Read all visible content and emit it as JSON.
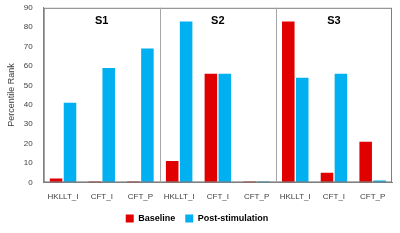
{
  "chart_data": {
    "type": "bar",
    "y_label": "Percentile Rank",
    "panels": [
      "S1",
      "S2",
      "S3"
    ],
    "categories": [
      "HKLLT_I",
      "CFT_I",
      "CFT_P",
      "HKLLT_I",
      "CFT_I",
      "CFT_P",
      "HKLLT_I",
      "CFT_I",
      "CFT_P"
    ],
    "series": [
      {
        "name": "Baseline",
        "color": "#e00000",
        "values": [
          2,
          0.5,
          0.5,
          11,
          56,
          0.5,
          83,
          5,
          21
        ]
      },
      {
        "name": "Post-stimulation",
        "color": "#00b0f0",
        "values": [
          41,
          59,
          69,
          83,
          56,
          0.5,
          54,
          56,
          1
        ]
      }
    ],
    "ylim": [
      0,
      90
    ],
    "yticks": [
      0,
      10,
      20,
      30,
      40,
      50,
      60,
      70,
      80,
      90
    ],
    "grid": false,
    "legend": "bottom"
  }
}
